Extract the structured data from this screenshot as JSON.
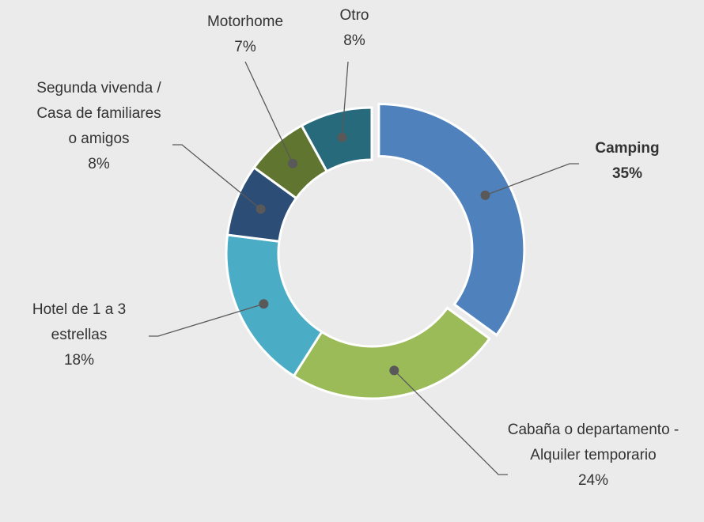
{
  "chart_data": {
    "type": "donut",
    "categories": [
      "Camping",
      "Cabaña o departamento - Alquiler temporario",
      "Hotel de 1 a 3 estrellas",
      "Segunda vivenda / Casa de familiares o amigos",
      "Motorhome",
      "Otro"
    ],
    "values": [
      35,
      24,
      18,
      8,
      7,
      8
    ],
    "value_labels": [
      "35%",
      "24%",
      "18%",
      "8%",
      "7%",
      "8%"
    ],
    "colors": [
      "#4f81bd",
      "#9bbb59",
      "#4bacc6",
      "#2c4d75",
      "#5f7530",
      "#276a7c"
    ],
    "exploded": "Camping"
  }
}
